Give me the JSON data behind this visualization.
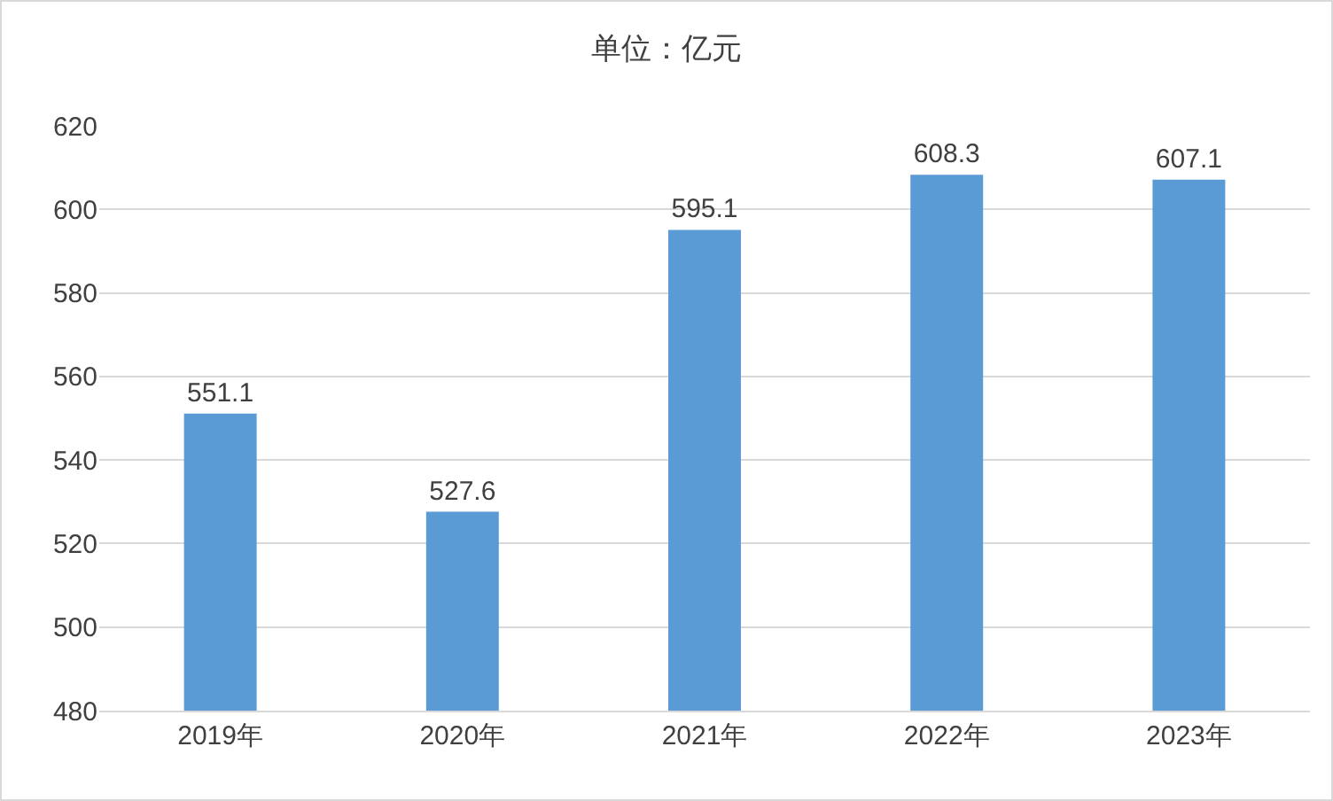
{
  "chart_data": {
    "type": "bar",
    "title": "单位：亿元",
    "categories": [
      "2019年",
      "2020年",
      "2021年",
      "2022年",
      "2023年"
    ],
    "values": [
      551.1,
      527.6,
      595.1,
      608.3,
      607.1
    ],
    "color": "#5b9bd5",
    "ylim": [
      480,
      620
    ],
    "yticks": [
      480,
      500,
      520,
      540,
      560,
      580,
      600,
      620
    ],
    "grid": "y",
    "data_labels": true
  }
}
